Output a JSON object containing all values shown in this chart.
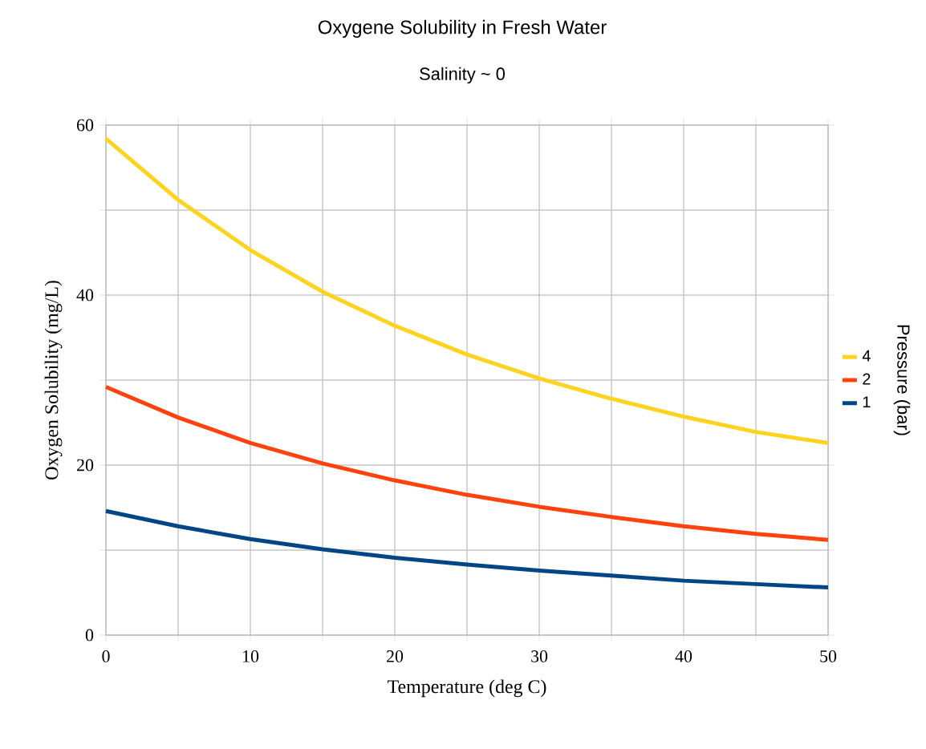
{
  "chart_data": {
    "type": "line",
    "title": "Oxygene Solubility in Fresh Water",
    "subtitle": "Salinity ~ 0",
    "xlabel": "Temperature (deg C)",
    "ylabel": "Oxygen Solubility (mg/L)",
    "legend_title": "Pressure (bar)",
    "x": [
      0,
      5,
      10,
      15,
      20,
      25,
      30,
      35,
      40,
      45,
      50
    ],
    "series": [
      {
        "name": "4",
        "color": "#ffd320",
        "values": [
          58.4,
          51.2,
          45.3,
          40.4,
          36.4,
          33.0,
          30.2,
          27.8,
          25.7,
          23.9,
          22.6
        ]
      },
      {
        "name": "2",
        "color": "#ff420e",
        "values": [
          29.2,
          25.6,
          22.6,
          20.2,
          18.2,
          16.5,
          15.1,
          13.9,
          12.8,
          11.9,
          11.2
        ]
      },
      {
        "name": "1",
        "color": "#004586",
        "values": [
          14.6,
          12.8,
          11.3,
          10.1,
          9.1,
          8.3,
          7.6,
          7.0,
          6.4,
          6.0,
          5.6
        ]
      }
    ],
    "xlim": [
      0,
      50
    ],
    "ylim": [
      0,
      60
    ],
    "xticks": [
      0,
      {
        "value": 5,
        "label": null
      },
      10,
      {
        "value": 15,
        "label": null
      },
      20,
      {
        "value": 25,
        "label": null
      },
      30,
      {
        "value": 35,
        "label": null
      },
      40,
      {
        "value": 45,
        "label": null
      },
      50
    ],
    "yticks": [
      0,
      {
        "value": 10,
        "label": null
      },
      20,
      {
        "value": 30,
        "label": null
      },
      40,
      {
        "value": 50,
        "label": null
      },
      60
    ],
    "grid": true,
    "legend": "right",
    "marker": "none",
    "line_style": "solid"
  }
}
